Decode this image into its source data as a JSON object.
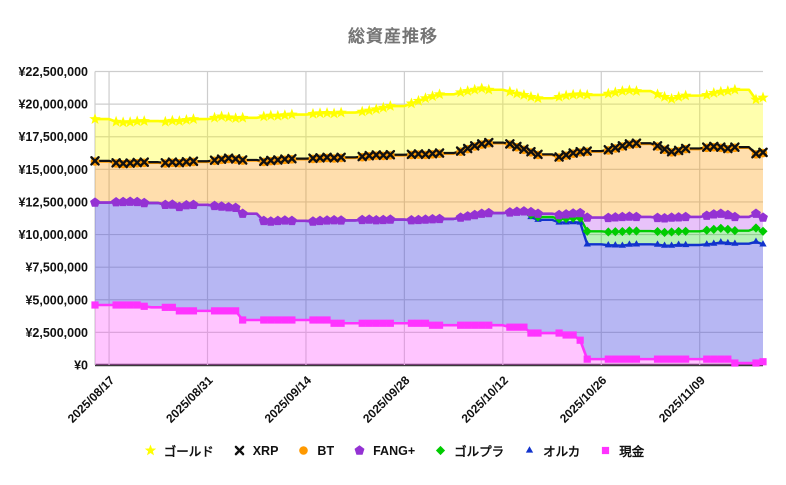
{
  "title": "総資産推移",
  "colors": {
    "title": "#757575",
    "grid": "#cdcdcd",
    "axis_baseline": "#3a3a3a",
    "axis_text": "#111111"
  },
  "y_axis": {
    "max": 22500000,
    "ticks": [
      {
        "value": 22500000,
        "label": "¥22,500,000"
      },
      {
        "value": 20000000,
        "label": "¥20,000,000"
      },
      {
        "value": 17500000,
        "label": "¥17,500,000"
      },
      {
        "value": 15000000,
        "label": "¥15,000,000"
      },
      {
        "value": 12500000,
        "label": "¥12,500,000"
      },
      {
        "value": 10000000,
        "label": "¥10,000,000"
      },
      {
        "value": 7500000,
        "label": "¥7,500,000"
      },
      {
        "value": 5000000,
        "label": "¥5,000,000"
      },
      {
        "value": 2500000,
        "label": "¥2,500,000"
      },
      {
        "value": 0,
        "label": "¥0"
      }
    ]
  },
  "x_axis": {
    "ticks": [
      {
        "label": "2025/08/17",
        "day_index": 2
      },
      {
        "label": "2025/08/31",
        "day_index": 16
      },
      {
        "label": "2025/09/14",
        "day_index": 30
      },
      {
        "label": "2025/09/28",
        "day_index": 44
      },
      {
        "label": "2025/10/12",
        "day_index": 58
      },
      {
        "label": "2025/10/26",
        "day_index": 72
      },
      {
        "label": "2025/11/09",
        "day_index": 86
      }
    ]
  },
  "legend": [
    {
      "label": "ゴールド",
      "marker": "star",
      "color": "#ffff00"
    },
    {
      "label": "XRP",
      "marker": "x",
      "color": "#111111"
    },
    {
      "label": "BT",
      "marker": "circle",
      "color": "#ff9900"
    },
    {
      "label": "FANG+",
      "marker": "pentagon",
      "color": "#9432d3"
    },
    {
      "label": "ゴルプラ",
      "marker": "diamond",
      "color": "#00cc00"
    },
    {
      "label": "オルカ",
      "marker": "triangle",
      "color": "#1133cc"
    },
    {
      "label": "現金",
      "marker": "square",
      "color": "#ff33ff"
    }
  ],
  "chart_data": {
    "type": "area",
    "stacked": true,
    "grid": true,
    "legend_position": "bottom",
    "title": "総資産推移",
    "ylabel": "",
    "xlabel": "",
    "ylim": [
      0,
      22500000
    ],
    "x": [
      "2025/08/15",
      "2025/08/16",
      "2025/08/17",
      "2025/08/18",
      "2025/08/19",
      "2025/08/20",
      "2025/08/21",
      "2025/08/22",
      "2025/08/23",
      "2025/08/24",
      "2025/08/25",
      "2025/08/26",
      "2025/08/27",
      "2025/08/28",
      "2025/08/29",
      "2025/08/30",
      "2025/08/31",
      "2025/09/01",
      "2025/09/02",
      "2025/09/03",
      "2025/09/04",
      "2025/09/05",
      "2025/09/06",
      "2025/09/07",
      "2025/09/08",
      "2025/09/09",
      "2025/09/10",
      "2025/09/11",
      "2025/09/12",
      "2025/09/13",
      "2025/09/14",
      "2025/09/15",
      "2025/09/16",
      "2025/09/17",
      "2025/09/18",
      "2025/09/19",
      "2025/09/20",
      "2025/09/21",
      "2025/09/22",
      "2025/09/23",
      "2025/09/24",
      "2025/09/25",
      "2025/09/26",
      "2025/09/27",
      "2025/09/28",
      "2025/09/29",
      "2025/09/30",
      "2025/10/01",
      "2025/10/02",
      "2025/10/03",
      "2025/10/04",
      "2025/10/05",
      "2025/10/06",
      "2025/10/07",
      "2025/10/08",
      "2025/10/09",
      "2025/10/10",
      "2025/10/11",
      "2025/10/12",
      "2025/10/13",
      "2025/10/14",
      "2025/10/15",
      "2025/10/16",
      "2025/10/17",
      "2025/10/18",
      "2025/10/19",
      "2025/10/20",
      "2025/10/21",
      "2025/10/22",
      "2025/10/23",
      "2025/10/24",
      "2025/10/25",
      "2025/10/26",
      "2025/10/27",
      "2025/10/28",
      "2025/10/29",
      "2025/10/30",
      "2025/10/31",
      "2025/11/01",
      "2025/11/02",
      "2025/11/03",
      "2025/11/04",
      "2025/11/05",
      "2025/11/06",
      "2025/11/07",
      "2025/11/08",
      "2025/11/09",
      "2025/11/10",
      "2025/11/11",
      "2025/11/12",
      "2025/11/13",
      "2025/11/14",
      "2025/11/15",
      "2025/11/16",
      "2025/11/17",
      "2025/11/18"
    ],
    "series": [
      {
        "name": "現金",
        "marker": "square",
        "line_color": "#ff33ff",
        "fill_color": "rgba(255,80,255,0.33)",
        "line_width": 2.6,
        "values": [
          4600000,
          4600000,
          4600000,
          4600000,
          4600000,
          4600000,
          4600000,
          4500000,
          4420000,
          4420000,
          4420000,
          4420000,
          4150000,
          4150000,
          4150000,
          4150000,
          4150000,
          4150000,
          4150000,
          4150000,
          4150000,
          3450000,
          3450000,
          3450000,
          3450000,
          3450000,
          3450000,
          3450000,
          3450000,
          3450000,
          3450000,
          3450000,
          3450000,
          3450000,
          3200000,
          3200000,
          3200000,
          3200000,
          3200000,
          3200000,
          3200000,
          3200000,
          3200000,
          3200000,
          3200000,
          3200000,
          3200000,
          3200000,
          3050000,
          3050000,
          3050000,
          3050000,
          3050000,
          3050000,
          3050000,
          3050000,
          3050000,
          3050000,
          3050000,
          2900000,
          2900000,
          2900000,
          2450000,
          2450000,
          2450000,
          2450000,
          2450000,
          2300000,
          2300000,
          1900000,
          450000,
          450000,
          450000,
          450000,
          450000,
          450000,
          450000,
          450000,
          450000,
          450000,
          450000,
          450000,
          450000,
          450000,
          450000,
          450000,
          450000,
          450000,
          450000,
          450000,
          450000,
          150000,
          150000,
          150000,
          150000,
          250000
        ]
      },
      {
        "name": "オルカ",
        "marker": "triangle",
        "line_color": "#1133cc",
        "fill_color": "rgba(75,75,225,0.40)",
        "line_width": 2.4,
        "values": [
          7850000,
          7850000,
          7850000,
          7880000,
          7900000,
          7920000,
          7900000,
          7920000,
          8000000,
          8000000,
          7860000,
          7880000,
          7970000,
          8100000,
          8130000,
          8130000,
          8130000,
          8050000,
          8000000,
          7950000,
          7900000,
          8150000,
          8150000,
          8150000,
          7600000,
          7550000,
          7600000,
          7630000,
          7600000,
          7600000,
          7600000,
          7550000,
          7600000,
          7630000,
          7900000,
          7880000,
          7880000,
          7880000,
          7920000,
          7950000,
          7900000,
          7920000,
          7950000,
          7950000,
          7950000,
          7900000,
          7920000,
          7950000,
          8130000,
          8150000,
          8150000,
          8150000,
          8250000,
          8350000,
          8450000,
          8550000,
          8600000,
          8600000,
          8600000,
          8800000,
          8850000,
          8880000,
          8890000,
          8680000,
          8680000,
          8680000,
          8470000,
          8630000,
          8650000,
          9020000,
          8800000,
          8800000,
          8800000,
          8730000,
          8720000,
          8700000,
          8780000,
          8800000,
          8800000,
          8800000,
          8780000,
          8700000,
          8700000,
          8770000,
          8750000,
          8750000,
          8750000,
          8800000,
          8850000,
          8950000,
          8900000,
          9150000,
          9150000,
          9150000,
          9300000,
          9000000
        ]
      },
      {
        "name": "ゴルプラ",
        "marker": "diamond",
        "line_color": "#00cc00",
        "fill_color": "rgba(0,204,0,0.28)",
        "line_width": 2.4,
        "hide_while_zero": true,
        "values": [
          0,
          0,
          0,
          0,
          0,
          0,
          0,
          0,
          0,
          0,
          0,
          0,
          0,
          0,
          0,
          0,
          0,
          0,
          0,
          0,
          0,
          0,
          0,
          0,
          0,
          0,
          0,
          0,
          0,
          0,
          0,
          0,
          0,
          0,
          0,
          0,
          0,
          0,
          0,
          0,
          0,
          0,
          0,
          0,
          0,
          0,
          0,
          0,
          0,
          0,
          0,
          0,
          0,
          0,
          0,
          0,
          0,
          0,
          0,
          0,
          0,
          0,
          180000,
          220000,
          220000,
          220000,
          280000,
          300000,
          320000,
          350000,
          1000000,
          1000000,
          1000000,
          1020000,
          1050000,
          1080000,
          1050000,
          1020000,
          1020000,
          1020000,
          1000000,
          1020000,
          1050000,
          1020000,
          1050000,
          1050000,
          1050000,
          1080000,
          1100000,
          1080000,
          1050000,
          1000000,
          1000000,
          1000000,
          1050000,
          1000000
        ]
      },
      {
        "name": "FANG+",
        "marker": "pentagon",
        "line_color": "#9432d3",
        "fill_color": "rgba(190,80,240,0.35)",
        "line_width": 2.6,
        "values": [
          0,
          0,
          0,
          0,
          0,
          0,
          0,
          0,
          0,
          0,
          0,
          0,
          0,
          0,
          0,
          0,
          0,
          0,
          0,
          0,
          0,
          0,
          0,
          0,
          0,
          0,
          0,
          0,
          0,
          0,
          0,
          0,
          0,
          0,
          0,
          0,
          0,
          0,
          0,
          0,
          0,
          0,
          0,
          0,
          0,
          0,
          0,
          0,
          0,
          0,
          0,
          0,
          0,
          0,
          0,
          0,
          0,
          0,
          0,
          0,
          0,
          0,
          200000,
          250000,
          250000,
          250000,
          300000,
          320000,
          350000,
          380000,
          1050000,
          1050000,
          1050000,
          1080000,
          1100000,
          1120000,
          1100000,
          1080000,
          1080000,
          1080000,
          1050000,
          1080000,
          1100000,
          1080000,
          1100000,
          1100000,
          1100000,
          1120000,
          1150000,
          1120000,
          1100000,
          1050000,
          1050000,
          1050000,
          1100000,
          1050000
        ]
      },
      {
        "name": "BT",
        "marker": "circle",
        "line_color": "#ff9900",
        "fill_color": "rgba(255,153,0,0.32)",
        "line_width": 2.4,
        "values": [
          3150000,
          3150000,
          3150000,
          2970000,
          2900000,
          2910000,
          2970000,
          3080000,
          3080000,
          3080000,
          3170000,
          3200000,
          3350000,
          3280000,
          3290000,
          3290000,
          3290000,
          3450000,
          3580000,
          3700000,
          3700000,
          4070000,
          4070000,
          4070000,
          4520000,
          4630000,
          4620000,
          4650000,
          4720000,
          4720000,
          4720000,
          4800000,
          4780000,
          4790000,
          4730000,
          4790000,
          4790000,
          4790000,
          4810000,
          4850000,
          4950000,
          4910000,
          4920000,
          4920000,
          4920000,
          5000000,
          5010000,
          4950000,
          4970000,
          5000000,
          5000000,
          5000000,
          5050000,
          5150000,
          5250000,
          5300000,
          5350000,
          5350000,
          5350000,
          5200000,
          4950000,
          4720000,
          4580000,
          4500000,
          4500000,
          4500000,
          4400000,
          4500000,
          4580000,
          4650000,
          5050000,
          5050000,
          5050000,
          5170000,
          5280000,
          5400000,
          5520000,
          5600000,
          5600000,
          5600000,
          5470000,
          5250000,
          5000000,
          5080000,
          5200000,
          5200000,
          5200000,
          5200000,
          5150000,
          5050000,
          5050000,
          5300000,
          5300000,
          5300000,
          4550000,
          4950000
        ]
      },
      {
        "name": "XRP",
        "marker": "x",
        "line_color": "#111111",
        "fill_color": "none",
        "line_width": 2.2,
        "values": [
          50000,
          50000,
          50000,
          50000,
          50000,
          50000,
          50000,
          50000,
          50000,
          50000,
          50000,
          50000,
          50000,
          50000,
          50000,
          50000,
          50000,
          50000,
          50000,
          50000,
          50000,
          50000,
          50000,
          50000,
          50000,
          50000,
          50000,
          50000,
          50000,
          50000,
          50000,
          50000,
          50000,
          50000,
          50000,
          50000,
          50000,
          50000,
          50000,
          50000,
          50000,
          50000,
          50000,
          50000,
          50000,
          50000,
          50000,
          50000,
          50000,
          50000,
          50000,
          50000,
          50000,
          50000,
          50000,
          50000,
          50000,
          50000,
          50000,
          50000,
          50000,
          50000,
          50000,
          50000,
          50000,
          50000,
          50000,
          50000,
          50000,
          50000,
          50000,
          50000,
          50000,
          50000,
          50000,
          50000,
          50000,
          50000,
          50000,
          50000,
          50000,
          50000,
          50000,
          50000,
          50000,
          50000,
          50000,
          50000,
          50000,
          50000,
          50000,
          50000,
          50000,
          50000,
          50000,
          50000
        ]
      },
      {
        "name": "ゴールド",
        "marker": "star",
        "line_color": "#ffff00",
        "fill_color": "rgba(255,255,0,0.32)",
        "line_width": 2.6,
        "values": [
          3200000,
          3200000,
          3200000,
          3150000,
          3150000,
          3140000,
          3160000,
          3150000,
          3150000,
          3150000,
          3150000,
          3170000,
          3180000,
          3200000,
          3230000,
          3230000,
          3230000,
          3250000,
          3270000,
          3130000,
          3120000,
          3230000,
          3230000,
          3230000,
          3430000,
          3440000,
          3380000,
          3370000,
          3380000,
          3380000,
          3380000,
          3400000,
          3420000,
          3400000,
          3400000,
          3430000,
          3430000,
          3430000,
          3440000,
          3450000,
          3500000,
          3640000,
          3730000,
          3730000,
          3730000,
          3900000,
          4070000,
          4300000,
          4400000,
          4500000,
          4500000,
          4500000,
          4500000,
          4400000,
          4300000,
          4250000,
          4050000,
          4050000,
          4050000,
          4000000,
          4050000,
          4150000,
          4200000,
          4300000,
          4300000,
          4300000,
          4600000,
          4550000,
          4470000,
          4400000,
          4300000,
          4300000,
          4300000,
          4300000,
          4250000,
          4200000,
          4100000,
          4000000,
          4000000,
          4000000,
          3950000,
          4000000,
          4050000,
          4100000,
          4050000,
          4050000,
          4050000,
          4000000,
          4100000,
          4250000,
          4400000,
          4400000,
          4400000,
          4400000,
          4150000,
          4200000
        ]
      }
    ]
  }
}
